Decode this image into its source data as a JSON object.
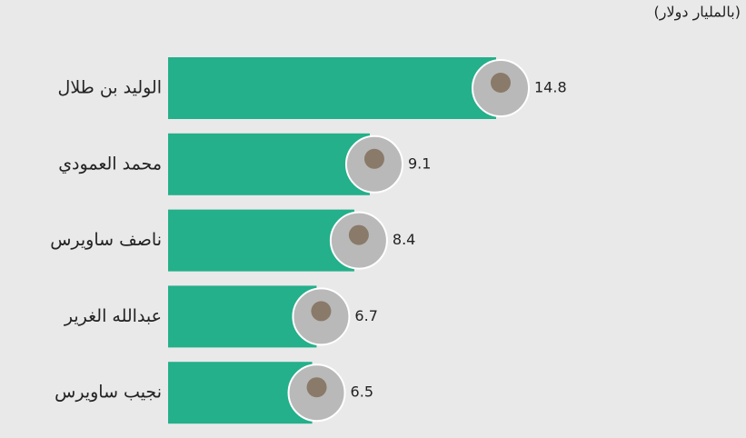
{
  "chart_data": {
    "type": "bar",
    "orientation": "horizontal",
    "subtitle": "(بالمليار دولار)",
    "categories": [
      "الوليد بن طلال",
      "محمد العمودي",
      "ناصف ساويرس",
      "عبدالله الغرير",
      "نجيب ساويرس"
    ],
    "values": [
      14.8,
      9.1,
      8.4,
      6.7,
      6.5
    ],
    "color": "#23b08a"
  }
}
